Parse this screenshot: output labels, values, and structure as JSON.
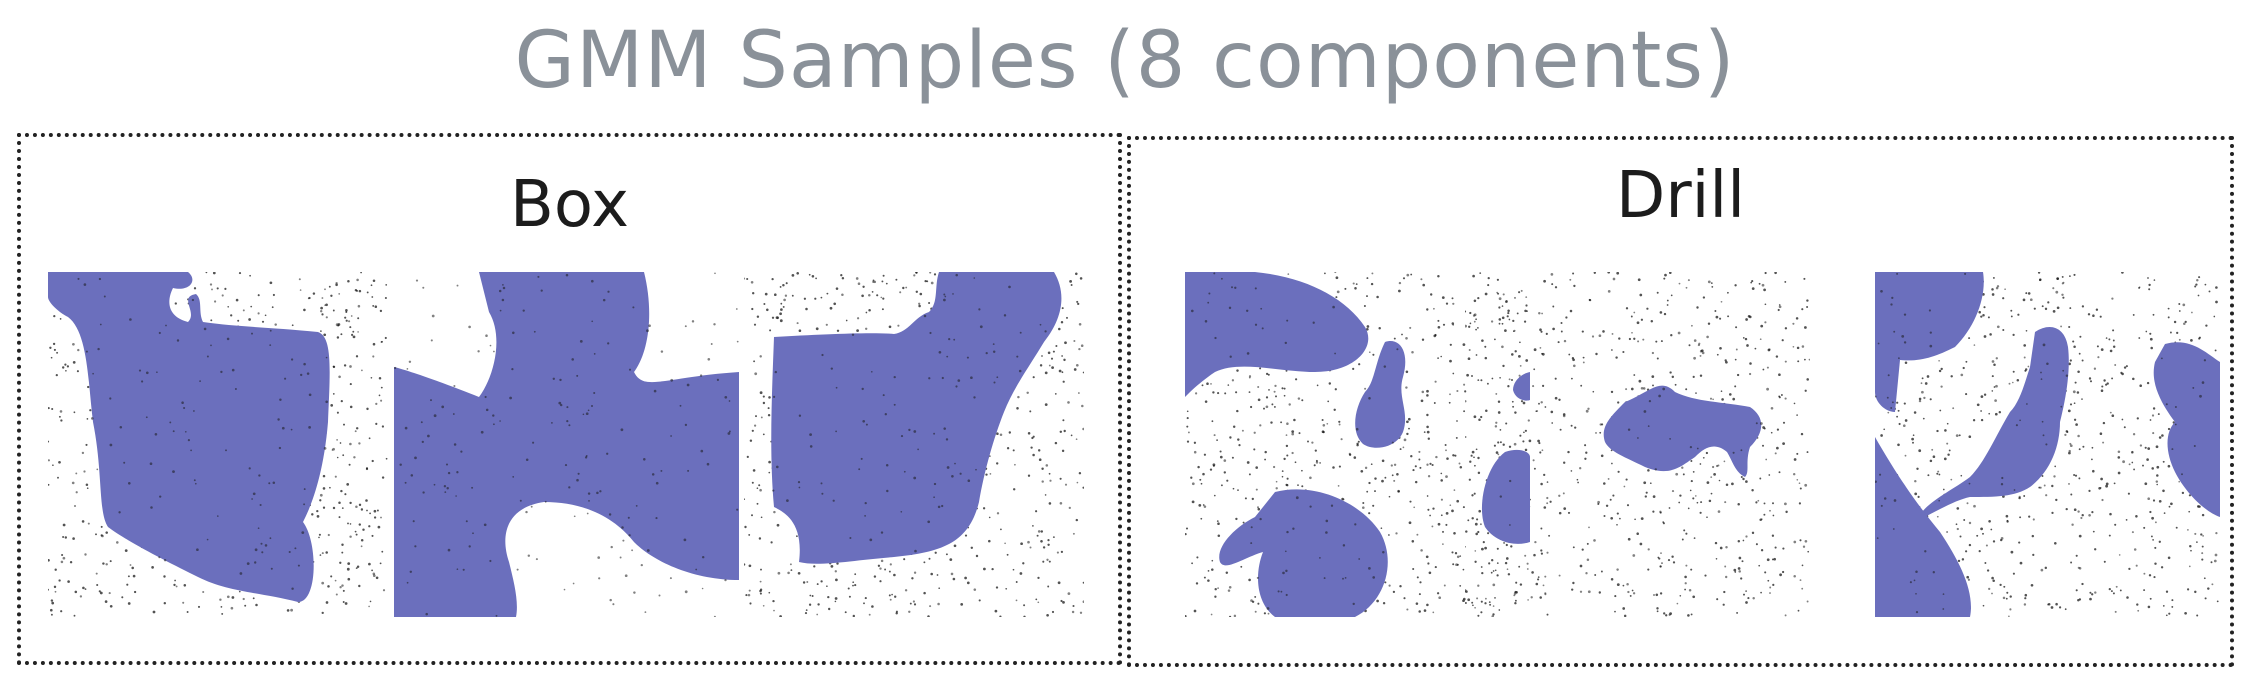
{
  "title": "GMM Samples (8 components)",
  "panels": [
    {
      "label": "Box",
      "sample_count": 3
    },
    {
      "label": "Drill",
      "sample_count": 3
    }
  ],
  "colors": {
    "title": "#8a9199",
    "shape_fill": "#6b6fbd",
    "point": "#1a1a1a",
    "border": "#222222"
  }
}
